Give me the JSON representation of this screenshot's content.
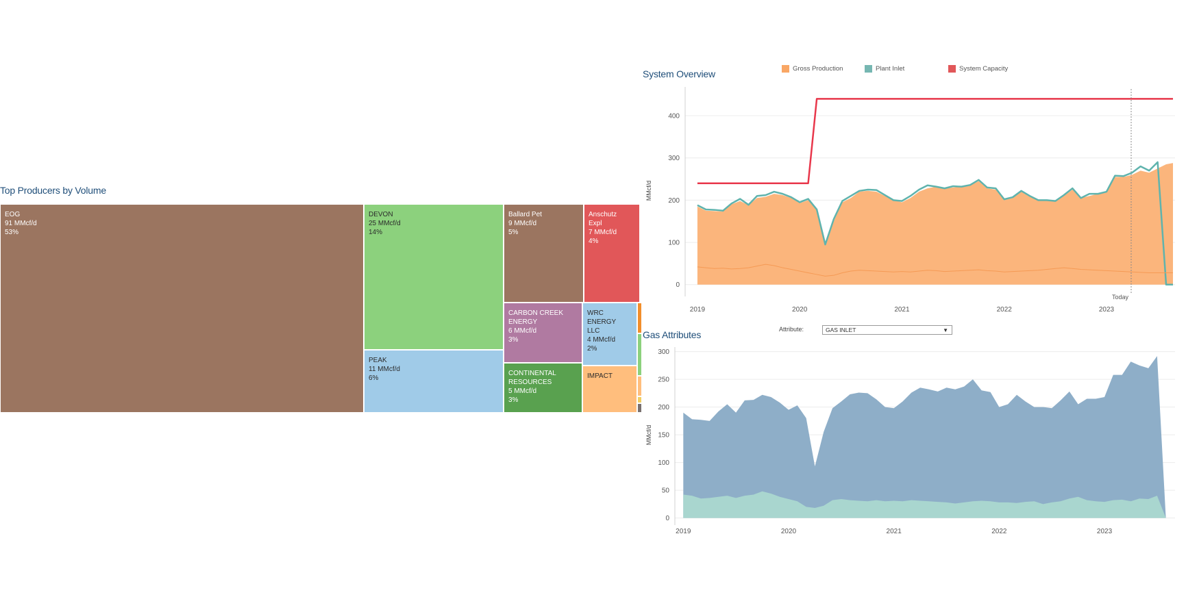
{
  "treemap": {
    "title": "Top Producers by Volume",
    "cells": [
      {
        "lines": [
          "EOG",
          "91 MMcf/d",
          "53%"
        ],
        "color": "#9b7560",
        "dark": false
      },
      {
        "lines": [
          "DEVON",
          "25 MMcf/d",
          "14%"
        ],
        "color": "#8cd17d",
        "dark": true
      },
      {
        "lines": [
          "PEAK",
          "11 MMcf/d",
          "6%"
        ],
        "color": "#a0cbe8",
        "dark": true
      },
      {
        "lines": [
          "Ballard Pet",
          "9 MMcf/d",
          "5%"
        ],
        "color": "#9b7560",
        "dark": false
      },
      {
        "lines": [
          "Anschutz",
          "Expl",
          "7 MMcf/d",
          "4%"
        ],
        "color": "#e15759",
        "dark": false
      },
      {
        "lines": [
          "CARBON CREEK",
          "ENERGY",
          "6 MMcf/d",
          "3%"
        ],
        "color": "#b07aa1",
        "dark": false
      },
      {
        "lines": [
          "WRC",
          "ENERGY",
          "LLC",
          "4 MMcf/d",
          "2%"
        ],
        "color": "#a0cbe8",
        "dark": true
      },
      {
        "lines": [
          "CONTINENTAL",
          "RESOURCES",
          "5 MMcf/d",
          "3%"
        ],
        "color": "#59a14f",
        "dark": false
      },
      {
        "lines": [
          "IMPACT"
        ],
        "color": "#ffbe7d",
        "dark": true
      },
      {
        "lines": [],
        "color": "#f28e2b",
        "dark": true
      },
      {
        "lines": [],
        "color": "#8cd17d",
        "dark": true
      },
      {
        "lines": [],
        "color": "#ffbe7d",
        "dark": true
      },
      {
        "lines": [],
        "color": "#f1ce63",
        "dark": true
      },
      {
        "lines": [],
        "color": "#79706e",
        "dark": true
      }
    ]
  },
  "system_overview": {
    "title": "System Overview",
    "legend": [
      {
        "label": "Gross Production",
        "color": "#f9a765"
      },
      {
        "label": "Plant Inlet",
        "color": "#76b7b2"
      },
      {
        "label": "System Capacity",
        "color": "#e15759"
      }
    ],
    "ylabel": "MMcf/d",
    "today_label": "Today"
  },
  "gas_attributes": {
    "title": "Gas Attributes",
    "attribute_label": "Attribute:",
    "attribute_value": "GAS INLET",
    "ylabel": "MMcf/d"
  },
  "chart_data": [
    {
      "type": "treemap",
      "title": "Top Producers by Volume",
      "categories": [
        "EOG",
        "DEVON",
        "PEAK",
        "Ballard Pet",
        "Anschutz Expl",
        "CARBON CREEK ENERGY",
        "WRC ENERGY LLC",
        "CONTINENTAL RESOURCES",
        "IMPACT"
      ],
      "values": [
        91,
        25,
        11,
        9,
        7,
        6,
        4,
        5,
        null
      ],
      "percents": [
        53,
        14,
        6,
        5,
        4,
        3,
        2,
        3,
        null
      ],
      "unit": "MMcf/d"
    },
    {
      "type": "area",
      "title": "System Overview",
      "ylabel": "MMcf/d",
      "xlim": [
        2018.88,
        2023.67
      ],
      "ylim": [
        -15,
        460
      ],
      "yticks": [
        0,
        100,
        200,
        300,
        400
      ],
      "xticks": [
        2019,
        2020,
        2021,
        2022,
        2023
      ],
      "x": [
        2019.0,
        2019.083,
        2019.167,
        2019.25,
        2019.333,
        2019.417,
        2019.5,
        2019.583,
        2019.667,
        2019.75,
        2019.833,
        2019.917,
        2020.0,
        2020.083,
        2020.167,
        2020.25,
        2020.333,
        2020.417,
        2020.5,
        2020.583,
        2020.667,
        2020.75,
        2020.833,
        2020.917,
        2021.0,
        2021.083,
        2021.167,
        2021.25,
        2021.333,
        2021.417,
        2021.5,
        2021.583,
        2021.667,
        2021.75,
        2021.833,
        2021.917,
        2022.0,
        2022.083,
        2022.167,
        2022.25,
        2022.333,
        2022.417,
        2022.5,
        2022.583,
        2022.667,
        2022.75,
        2022.833,
        2022.917,
        2023.0,
        2023.083,
        2023.167,
        2023.25,
        2023.333,
        2023.417,
        2023.5,
        2023.583,
        2023.65
      ],
      "series": [
        {
          "name": "Gross Production",
          "color": "#f9a765",
          "values": [
            185,
            175,
            174,
            173,
            190,
            198,
            188,
            205,
            208,
            215,
            212,
            205,
            193,
            200,
            180,
            100,
            150,
            195,
            205,
            220,
            222,
            220,
            210,
            200,
            195,
            205,
            220,
            228,
            232,
            228,
            230,
            232,
            235,
            245,
            228,
            225,
            200,
            205,
            220,
            208,
            200,
            200,
            198,
            210,
            225,
            205,
            210,
            215,
            218,
            255,
            255,
            260,
            270,
            265,
            275,
            285,
            288
          ]
        },
        {
          "name": "Plant Inlet",
          "color": "#76b7b2",
          "values": [
            188,
            178,
            177,
            175,
            192,
            203,
            189,
            210,
            212,
            220,
            215,
            207,
            195,
            203,
            178,
            95,
            155,
            198,
            210,
            222,
            225,
            224,
            212,
            200,
            198,
            210,
            225,
            235,
            232,
            228,
            233,
            232,
            236,
            248,
            230,
            228,
            202,
            207,
            222,
            210,
            200,
            200,
            198,
            212,
            228,
            205,
            215,
            215,
            220,
            258,
            257,
            265,
            280,
            270,
            290,
            0,
            0
          ]
        },
        {
          "name": "System Capacity",
          "color": "#e15759",
          "values": [
            240,
            240,
            240,
            240,
            240,
            240,
            240,
            240,
            240,
            240,
            240,
            240,
            240,
            240,
            440,
            440,
            440,
            440,
            440,
            440,
            440,
            440,
            440,
            440,
            440,
            440,
            440,
            440,
            440,
            440,
            440,
            440,
            440,
            440,
            440,
            440,
            440,
            440,
            440,
            440,
            440,
            440,
            440,
            440,
            440,
            440,
            440,
            440,
            440,
            440,
            440,
            440,
            440,
            440,
            440,
            440,
            440
          ]
        },
        {
          "values": [
            42,
            40,
            38,
            39,
            37,
            38,
            40,
            44,
            48,
            45,
            40,
            36,
            32,
            28,
            24,
            20,
            22,
            28,
            32,
            34,
            33,
            32,
            31,
            30,
            31,
            30,
            32,
            34,
            33,
            31,
            32,
            33,
            34,
            35,
            33,
            32,
            30,
            31,
            32,
            33,
            34,
            36,
            38,
            40,
            38,
            36,
            35,
            34,
            33,
            32,
            31,
            30,
            29,
            28,
            28,
            28,
            28
          ]
        }
      ]
    },
    {
      "type": "area",
      "title": "Gas Attributes",
      "ylabel": "MMcf/d",
      "xlim": [
        2018.92,
        2023.67
      ],
      "ylim": [
        -3,
        302
      ],
      "yticks": [
        0,
        50,
        100,
        150,
        200,
        250,
        300
      ],
      "xticks": [
        2019,
        2020,
        2021,
        2022,
        2023
      ],
      "x": [
        2019.0,
        2019.083,
        2019.167,
        2019.25,
        2019.333,
        2019.417,
        2019.5,
        2019.583,
        2019.667,
        2019.75,
        2019.833,
        2019.917,
        2020.0,
        2020.083,
        2020.167,
        2020.25,
        2020.333,
        2020.417,
        2020.5,
        2020.583,
        2020.667,
        2020.75,
        2020.833,
        2020.917,
        2021.0,
        2021.083,
        2021.167,
        2021.25,
        2021.333,
        2021.417,
        2021.5,
        2021.583,
        2021.667,
        2021.75,
        2021.833,
        2021.917,
        2022.0,
        2022.083,
        2022.167,
        2022.25,
        2022.333,
        2022.417,
        2022.5,
        2022.583,
        2022.667,
        2022.75,
        2022.833,
        2022.917,
        2023.0,
        2023.083,
        2023.167,
        2023.25,
        2023.333,
        2023.417,
        2023.5,
        2023.583
      ],
      "series": [
        {
          "color": "#7fa1c2",
          "values": [
            190,
            178,
            177,
            175,
            192,
            205,
            190,
            212,
            213,
            222,
            218,
            208,
            195,
            203,
            180,
            93,
            155,
            198,
            210,
            223,
            226,
            225,
            214,
            200,
            198,
            210,
            226,
            235,
            232,
            228,
            235,
            232,
            237,
            250,
            230,
            227,
            200,
            205,
            222,
            210,
            200,
            200,
            198,
            212,
            228,
            205,
            215,
            215,
            218,
            258,
            258,
            282,
            275,
            270,
            292,
            0
          ]
        },
        {
          "color": "#a9d6cf",
          "values": [
            42,
            40,
            35,
            36,
            38,
            40,
            36,
            40,
            42,
            48,
            44,
            38,
            34,
            30,
            20,
            18,
            22,
            32,
            34,
            32,
            31,
            30,
            32,
            30,
            31,
            30,
            32,
            31,
            30,
            29,
            28,
            26,
            28,
            30,
            31,
            30,
            28,
            28,
            27,
            29,
            30,
            25,
            28,
            30,
            35,
            38,
            32,
            30,
            29,
            32,
            33,
            30,
            35,
            34,
            40,
            0
          ]
        }
      ]
    }
  ]
}
